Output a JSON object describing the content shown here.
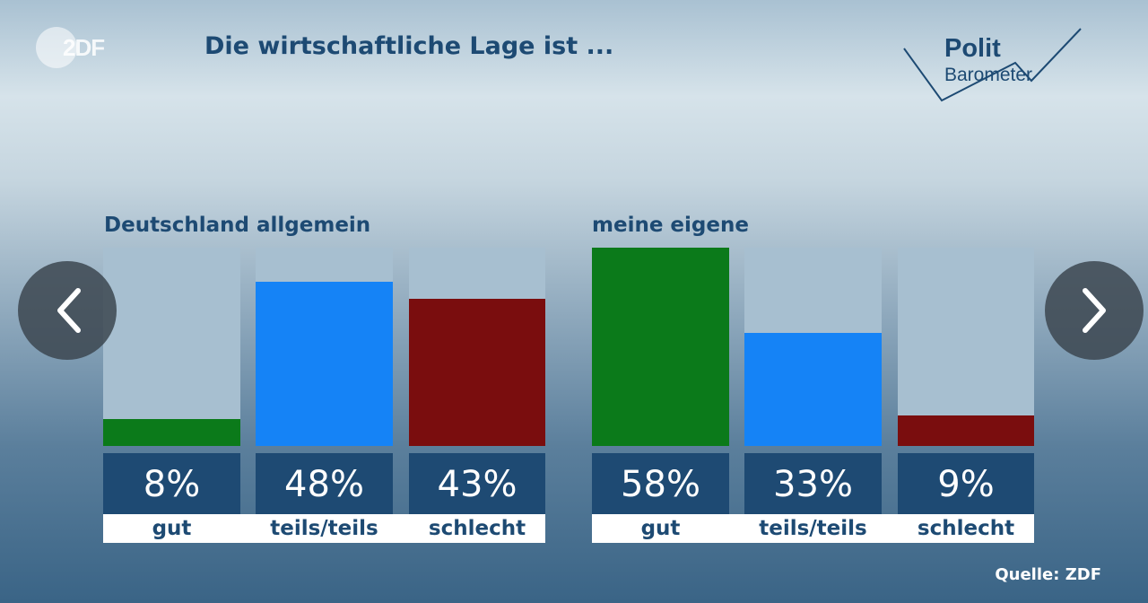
{
  "header": {
    "brand": "2DF",
    "title": "Die wirtschaftliche Lage ist ...",
    "logo_line1": "Polit",
    "logo_line2": "Barometer"
  },
  "colors": {
    "gut": "#0b7a1a",
    "teils": "#1583f6",
    "schlecht": "#7a0d0e"
  },
  "chart_data": {
    "type": "bar",
    "title": "Die wirtschaftliche Lage ist ...",
    "ylim": [
      0,
      58
    ],
    "groups": [
      {
        "name": "Deutschland allgemein",
        "categories": [
          "gut",
          "teils/teils",
          "schlecht"
        ],
        "values": [
          8,
          48,
          43
        ],
        "labels": [
          "8%",
          "48%",
          "43%"
        ]
      },
      {
        "name": "meine eigene",
        "categories": [
          "gut",
          "teils/teils",
          "schlecht"
        ],
        "values": [
          58,
          33,
          9
        ],
        "labels": [
          "58%",
          "33%",
          "9%"
        ]
      }
    ]
  },
  "footer": {
    "source": "Quelle: ZDF"
  }
}
